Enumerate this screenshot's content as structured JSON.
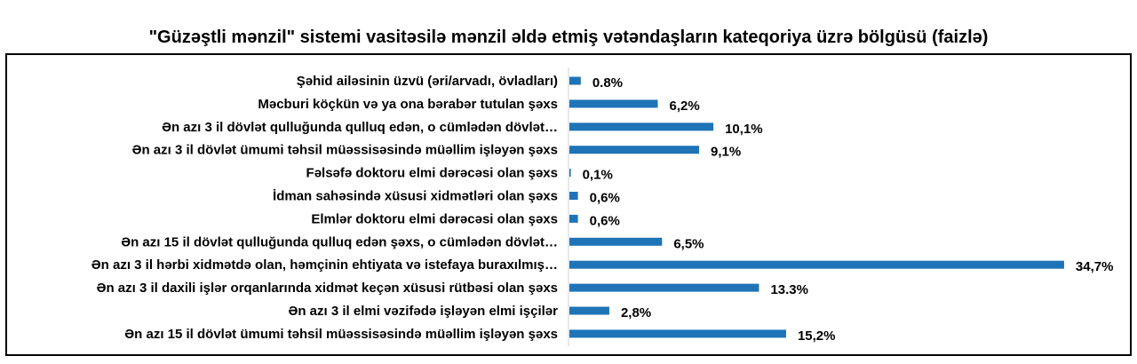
{
  "chart_data": {
    "type": "bar",
    "orientation": "horizontal",
    "title": "\"Güzəştli mənzil\" sistemi vasitəsilə mənzil əldə etmiş vətəndaşların kateqoriya üzrə bölgüsü (faizlə)",
    "categories": [
      "Şəhid ailəsinin üzvü (əri/arvadı, övladları)",
      "Məcburi köçkün və ya ona bərabər tutulan şəxs",
      "Ən azı 3 il dövlət qulluğunda qulluq edən, o cümlədən dövlət…",
      "Ən azı 3 il dövlət ümumi təhsil müəssisəsində müəllim işləyən şəxs",
      "Fəlsəfə doktoru elmi dərəcəsi olan şəxs",
      "İdman sahəsində xüsusi xidmətləri olan şəxs",
      "Elmlər doktoru elmi dərəcəsi olan şəxs",
      "Ən azı 15 il dövlət qulluğunda qulluq edən şəxs, o cümlədən dövlət…",
      "Ən azı 3 il hərbi xidmətdə olan, həmçinin ehtiyata və istefaya buraxılmış…",
      "Ən azı 3 il daxili işlər orqanlarında xidmət keçən xüsusi rütbəsi olan şəxs",
      "Ən azı 3 il elmi vəzifədə işləyən elmi işçilər",
      "Ən azı 15 il dövlət ümumi təhsil müəssisəsində müəllim işləyən şəxs"
    ],
    "values": [
      0.8,
      6.2,
      10.1,
      9.1,
      0.1,
      0.6,
      0.6,
      6.5,
      34.7,
      13.3,
      2.8,
      15.2
    ],
    "value_labels": [
      "0.8%",
      "6,2%",
      "10,1%",
      "9,1%",
      "0,1%",
      "0,6%",
      "0,6%",
      "6,5%",
      "34,7%",
      "13.3%",
      "2,8%",
      "15,2%"
    ],
    "bar_color": "#1f73b7",
    "grid": false,
    "legend": "none"
  }
}
